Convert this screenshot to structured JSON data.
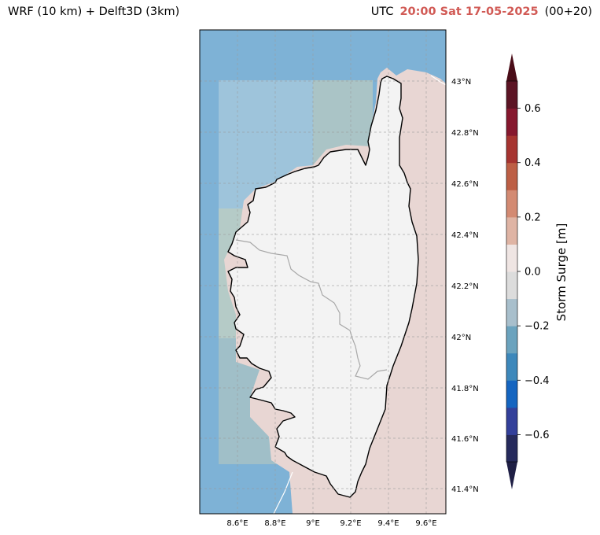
{
  "header": {
    "model_label": "WRF (10 km) + Delft3D (3km)",
    "utc_label": "UTC",
    "datetime": "20:00 Sat 17-05-2025",
    "lead_time": "(00+20)"
  },
  "map": {
    "region": "Corsica",
    "lon_ticks": [
      "8.6°E",
      "8.8°E",
      "9°E",
      "9.2°E",
      "9.4°E",
      "9.6°E"
    ],
    "lat_ticks": [
      "43°N",
      "42.8°N",
      "42.6°N",
      "42.4°N",
      "42.2°N",
      "42°N",
      "41.8°N",
      "41.6°N",
      "41.4°N"
    ],
    "lon_range": [
      8.4,
      9.7
    ],
    "lat_range": [
      41.3,
      43.2
    ],
    "gridlines": true
  },
  "colorbar": {
    "label": "Storm Surge [m]",
    "ticks": [
      "0.6",
      "0.4",
      "0.2",
      "0.0",
      "−0.2",
      "−0.4",
      "−0.6"
    ],
    "tick_values": [
      0.6,
      0.4,
      0.2,
      0.0,
      -0.2,
      -0.4,
      -0.6
    ],
    "levels": [
      -0.7,
      -0.6,
      -0.5,
      -0.4,
      -0.3,
      -0.2,
      -0.1,
      0.0,
      0.1,
      0.2,
      0.3,
      0.4,
      0.5,
      0.6,
      0.7
    ],
    "colors": [
      "#262a5c",
      "#33409a",
      "#1565c0",
      "#3d88bb",
      "#6ba3be",
      "#a8bfcc",
      "#dcdcdc",
      "#efe5e3",
      "#dfb4a4",
      "#d38a72",
      "#bd5f45",
      "#a63430",
      "#86182e",
      "#5c1424"
    ],
    "extend_low_color": "#1f1f45",
    "extend_high_color": "#4a0d18"
  },
  "colors": {
    "sea_deep": "#7eb2d6",
    "sea_light": "#9ec4db",
    "sea_green": "#a7c3c4",
    "surge_positive": "#e8d6d3",
    "land": "#f3f3f3",
    "coastline": "#000000"
  }
}
